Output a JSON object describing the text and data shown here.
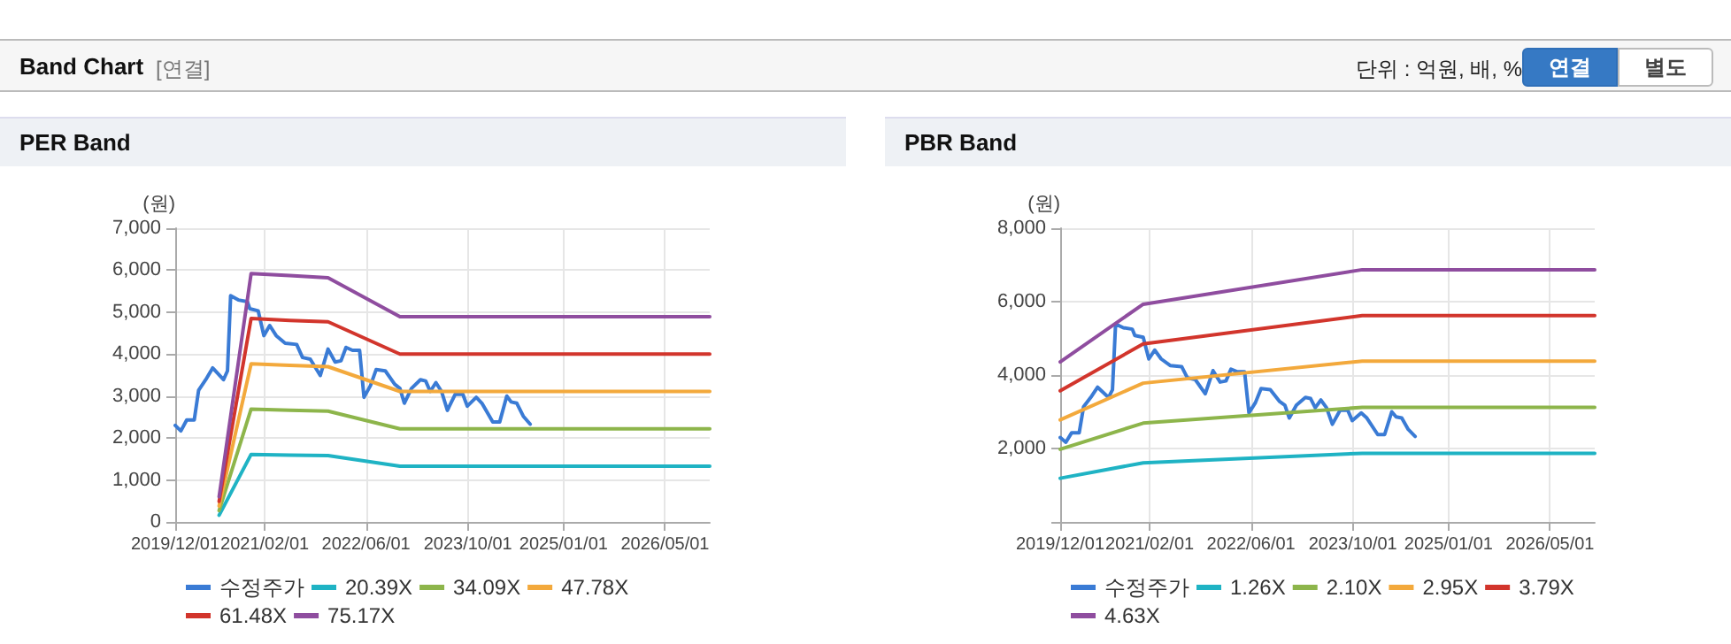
{
  "chart_data": [
    {
      "type": "other",
      "title": "Band Chart",
      "subtitle": "[연결]",
      "annotations": [
        "단위 : 억원, 배, %",
        "연결",
        "별도"
      ]
    },
    {
      "type": "line",
      "title": "PER Band",
      "ylabel": "(원)",
      "grid": true,
      "legend": "bottom",
      "marker": "none",
      "line_style": "solid",
      "xlim": [
        "2019-12-01",
        "2026-12-01"
      ],
      "xticks": [
        {
          "value": "2019-12-01",
          "label": "2019/12/01"
        },
        {
          "value": "2021-02-01",
          "label": "2021/02/01"
        },
        {
          "value": "2022-06-01",
          "label": "2022/06/01"
        },
        {
          "value": "2023-10-01",
          "label": "2023/10/01"
        },
        {
          "value": "2025-01-01",
          "label": "2025/01/01"
        },
        {
          "value": "2026-05-01",
          "label": "2026/05/01"
        }
      ],
      "ylim": [
        0,
        7000
      ],
      "yticks": [
        0,
        {
          "value": 1000,
          "label": "1,000"
        },
        {
          "value": 2000,
          "label": "2,000"
        },
        {
          "value": 3000,
          "label": "3,000"
        },
        {
          "value": 4000,
          "label": "4,000"
        },
        {
          "value": 5000,
          "label": "5,000"
        },
        {
          "value": 6000,
          "label": "6,000"
        },
        {
          "value": 7000,
          "label": "7,000"
        }
      ],
      "series": [
        {
          "name": "수정주가",
          "color": "#3a7bd5",
          "x": [
            "2019-12-01",
            "2019-12-28",
            "2020-01-25",
            "2020-03-01",
            "2020-03-22",
            "2020-04-25",
            "2020-05-28",
            "2020-07-19",
            "2020-08-07",
            "2020-08-22",
            "2020-09-28",
            "2020-11-10",
            "2020-11-22",
            "2021-01-01",
            "2021-01-28",
            "2021-02-25",
            "2021-03-28",
            "2021-05-10",
            "2021-07-04",
            "2021-08-01",
            "2021-09-07",
            "2021-10-25",
            "2021-12-01",
            "2022-01-04",
            "2022-02-01",
            "2022-02-25",
            "2022-03-28",
            "2022-05-01",
            "2022-05-22",
            "2022-06-22",
            "2022-07-19",
            "2022-09-01",
            "2022-10-16",
            "2022-11-10",
            "2022-12-01",
            "2023-01-04",
            "2023-02-16",
            "2023-03-13",
            "2023-04-04",
            "2023-05-01",
            "2023-05-28",
            "2023-06-25",
            "2023-08-01",
            "2023-09-07",
            "2023-09-28",
            "2023-11-10",
            "2023-12-07",
            "2024-01-28",
            "2024-03-01",
            "2024-04-04",
            "2024-04-25",
            "2024-05-22",
            "2024-06-22",
            "2024-07-25"
          ],
          "values": [
            2300,
            2170,
            2430,
            2430,
            3140,
            3390,
            3670,
            3390,
            3600,
            5390,
            5290,
            5250,
            5080,
            5030,
            4440,
            4680,
            4440,
            4260,
            4230,
            3920,
            3880,
            3490,
            4120,
            3810,
            3840,
            4160,
            4090,
            4090,
            2970,
            3250,
            3630,
            3600,
            3280,
            3180,
            2830,
            3180,
            3390,
            3360,
            3110,
            3320,
            3110,
            2660,
            3040,
            3040,
            2760,
            2970,
            2830,
            2380,
            2380,
            3000,
            2860,
            2830,
            2520,
            2330
          ]
        },
        {
          "name": "20.39X",
          "color": "#1fb3c4",
          "x": [
            "2020-06-28",
            "2020-11-28",
            "2021-06-01",
            "2021-12-01",
            "2022-11-10",
            "2026-12-01"
          ],
          "values": [
            160,
            1610,
            1590,
            1580,
            1330,
            1330
          ]
        },
        {
          "name": "34.09X",
          "color": "#8db54b",
          "x": [
            "2020-06-28",
            "2020-11-28",
            "2021-06-01",
            "2021-12-01",
            "2022-11-10",
            "2026-12-01"
          ],
          "values": [
            270,
            2690,
            2660,
            2640,
            2220,
            2220
          ]
        },
        {
          "name": "47.78X",
          "color": "#f3a93c",
          "x": [
            "2020-06-28",
            "2020-11-28",
            "2021-06-01",
            "2021-12-01",
            "2022-11-10",
            "2026-12-01"
          ],
          "values": [
            380,
            3770,
            3730,
            3700,
            3110,
            3110
          ]
        },
        {
          "name": "61.48X",
          "color": "#d2352c",
          "x": [
            "2020-06-28",
            "2020-11-28",
            "2021-06-01",
            "2021-12-01",
            "2022-11-10",
            "2026-12-01"
          ],
          "values": [
            490,
            4850,
            4800,
            4770,
            4000,
            4000
          ]
        },
        {
          "name": "75.17X",
          "color": "#8f4d9f",
          "x": [
            "2020-06-28",
            "2020-11-28",
            "2021-06-01",
            "2021-12-01",
            "2022-11-10",
            "2026-12-01"
          ],
          "values": [
            600,
            5920,
            5870,
            5820,
            4890,
            4890
          ]
        }
      ]
    },
    {
      "type": "line",
      "title": "PBR Band",
      "ylabel": "(원)",
      "grid": true,
      "legend": "bottom",
      "marker": "none",
      "line_style": "solid",
      "xlim": [
        "2019-12-01",
        "2026-12-01"
      ],
      "xticks": [
        {
          "value": "2019-12-01",
          "label": "2019/12/01"
        },
        {
          "value": "2021-02-01",
          "label": "2021/02/01"
        },
        {
          "value": "2022-06-01",
          "label": "2022/06/01"
        },
        {
          "value": "2023-10-01",
          "label": "2023/10/01"
        },
        {
          "value": "2025-01-01",
          "label": "2025/01/01"
        },
        {
          "value": "2026-05-01",
          "label": "2026/05/01"
        }
      ],
      "ylim": [
        0,
        8000
      ],
      "yticks": [
        {
          "value": 0,
          "label": null
        },
        {
          "value": 2000,
          "label": "2,000"
        },
        {
          "value": 4000,
          "label": "4,000"
        },
        {
          "value": 6000,
          "label": "6,000"
        },
        {
          "value": 8000,
          "label": "8,000"
        }
      ],
      "series": [
        {
          "name": "수정주가",
          "color": "#3a7bd5",
          "x": [
            "2019-12-01",
            "2019-12-28",
            "2020-01-25",
            "2020-03-01",
            "2020-03-22",
            "2020-04-25",
            "2020-05-28",
            "2020-07-19",
            "2020-08-07",
            "2020-08-22",
            "2020-09-28",
            "2020-11-10",
            "2020-11-22",
            "2021-01-01",
            "2021-01-28",
            "2021-02-25",
            "2021-03-28",
            "2021-05-10",
            "2021-07-04",
            "2021-08-01",
            "2021-09-07",
            "2021-10-25",
            "2021-12-01",
            "2022-01-04",
            "2022-02-01",
            "2022-02-25",
            "2022-03-28",
            "2022-05-01",
            "2022-05-22",
            "2022-06-22",
            "2022-07-19",
            "2022-09-01",
            "2022-10-16",
            "2022-11-10",
            "2022-12-01",
            "2023-01-04",
            "2023-02-16",
            "2023-03-13",
            "2023-04-04",
            "2023-05-01",
            "2023-05-28",
            "2023-06-25",
            "2023-08-01",
            "2023-09-07",
            "2023-09-28",
            "2023-11-10",
            "2023-12-07",
            "2024-01-28",
            "2024-03-01",
            "2024-04-04",
            "2024-04-25",
            "2024-05-22",
            "2024-06-22",
            "2024-07-25"
          ],
          "values": [
            2300,
            2170,
            2430,
            2430,
            3140,
            3390,
            3670,
            3390,
            3600,
            5390,
            5290,
            5250,
            5080,
            5030,
            4440,
            4680,
            4440,
            4260,
            4230,
            3920,
            3880,
            3490,
            4120,
            3810,
            3840,
            4160,
            4090,
            4090,
            2970,
            3250,
            3630,
            3600,
            3280,
            3180,
            2830,
            3180,
            3390,
            3360,
            3110,
            3320,
            3110,
            2660,
            3040,
            3040,
            2760,
            2970,
            2830,
            2380,
            2380,
            3000,
            2860,
            2830,
            2520,
            2330
          ]
        },
        {
          "name": "1.26X",
          "color": "#1fb3c4",
          "x": [
            "2019-12-01",
            "2021-01-01",
            "2023-11-15",
            "2026-12-01"
          ],
          "values": [
            1190,
            1610,
            1870,
            1870
          ]
        },
        {
          "name": "2.10X",
          "color": "#8db54b",
          "x": [
            "2019-12-01",
            "2021-01-01",
            "2023-11-15",
            "2026-12-01"
          ],
          "values": [
            1980,
            2690,
            3120,
            3120
          ]
        },
        {
          "name": "2.95X",
          "color": "#f3a93c",
          "x": [
            "2019-12-01",
            "2021-01-01",
            "2023-11-15",
            "2026-12-01"
          ],
          "values": [
            2780,
            3780,
            4380,
            4380
          ]
        },
        {
          "name": "3.79X",
          "color": "#d2352c",
          "x": [
            "2019-12-01",
            "2021-01-01",
            "2023-11-15",
            "2026-12-01"
          ],
          "values": [
            3570,
            4850,
            5620,
            5620
          ]
        },
        {
          "name": "4.63X",
          "color": "#8f4d9f",
          "x": [
            "2019-12-01",
            "2021-01-01",
            "2023-11-15",
            "2026-12-01"
          ],
          "values": [
            4360,
            5930,
            6870,
            6870
          ]
        }
      ]
    }
  ]
}
